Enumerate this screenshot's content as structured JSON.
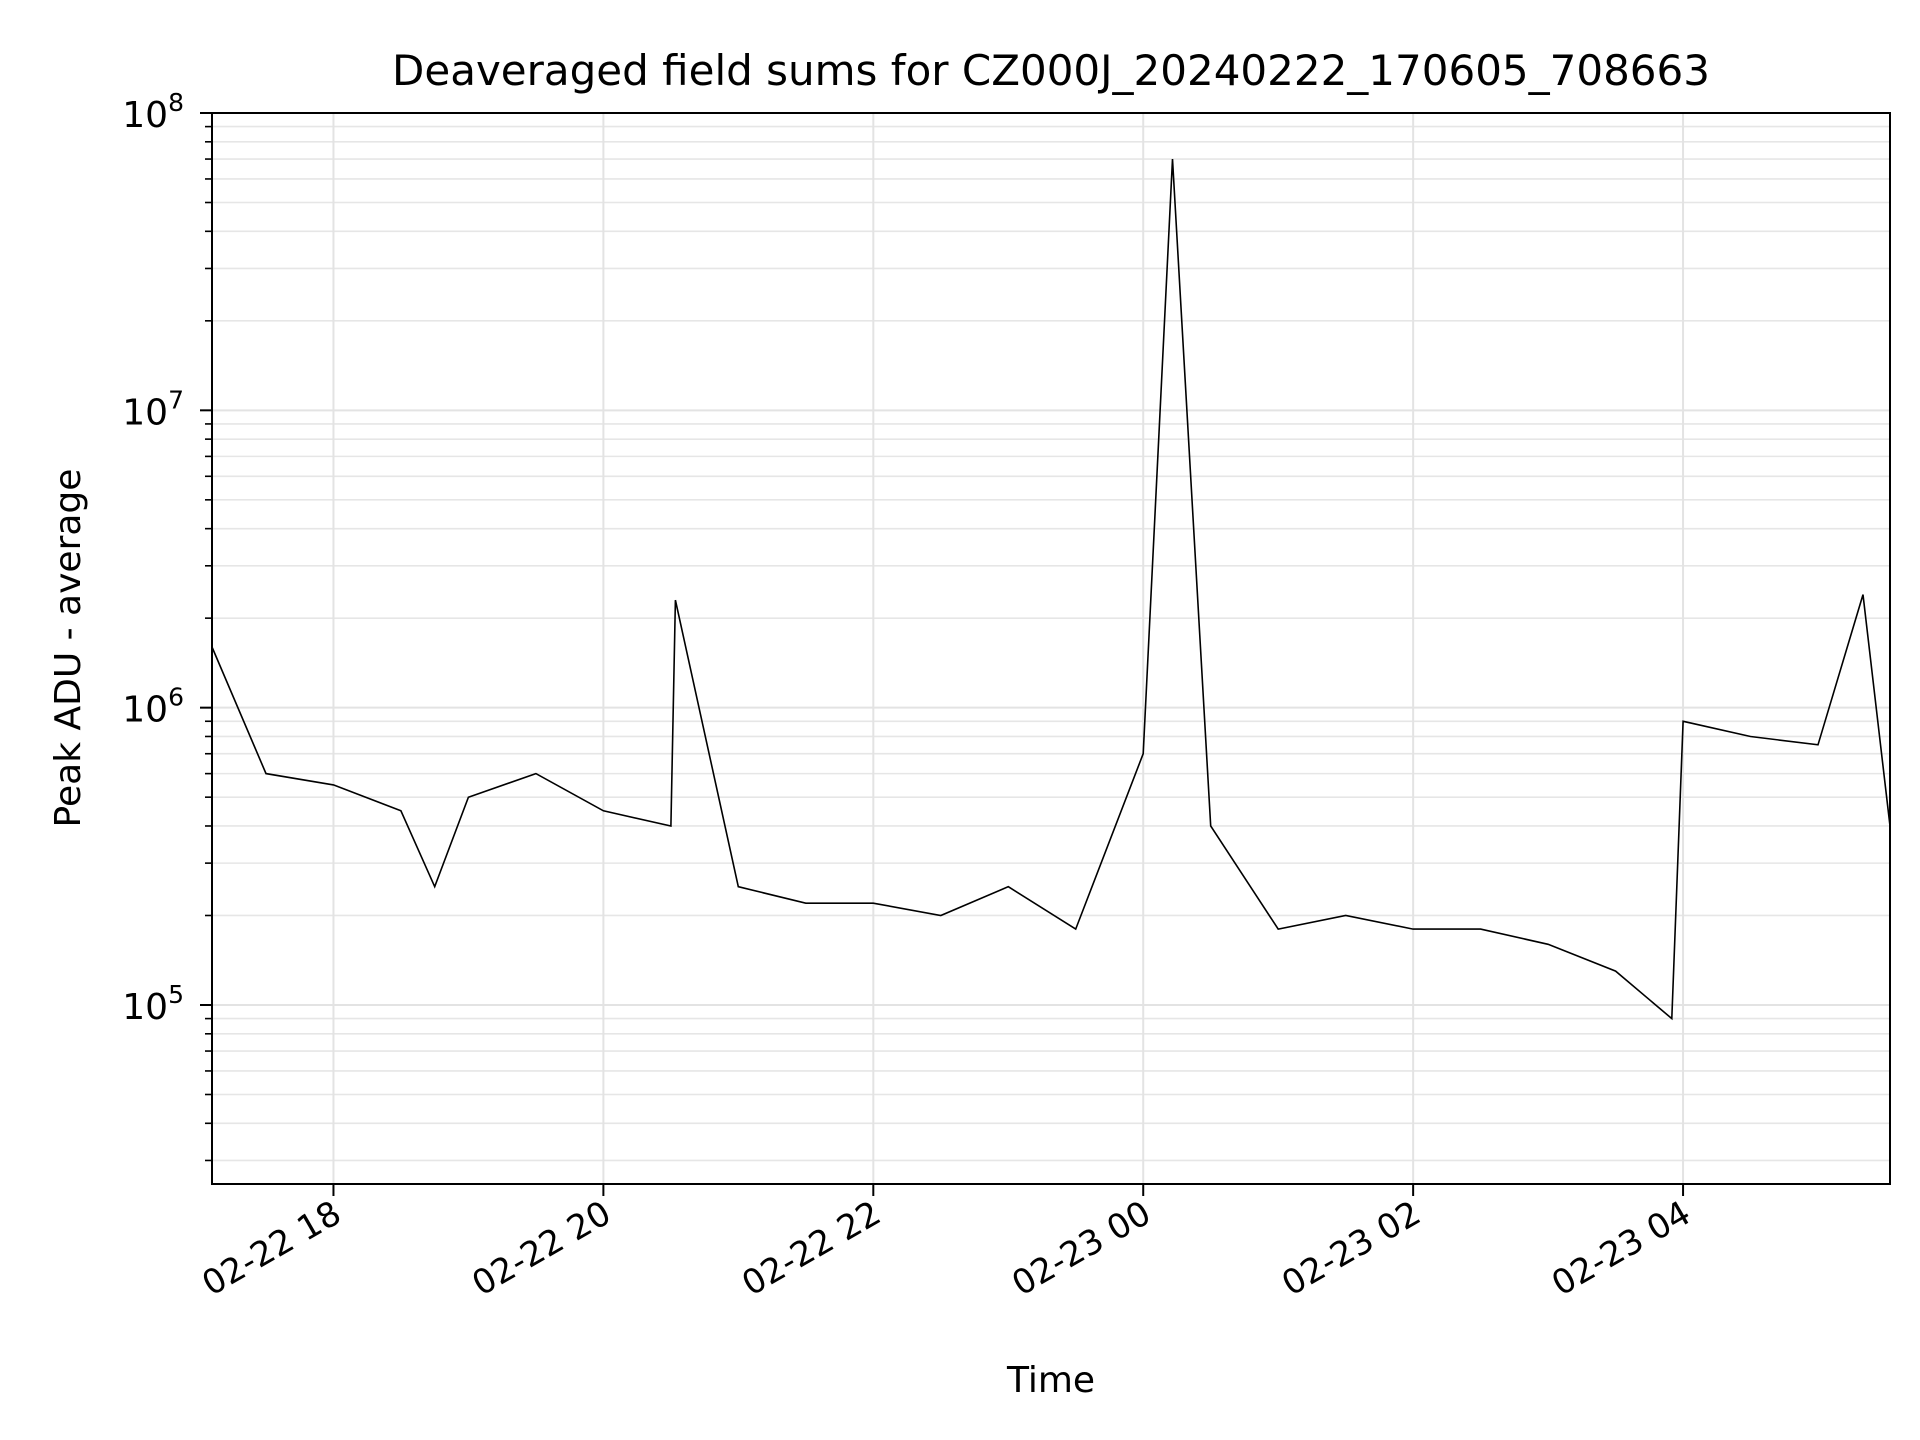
{
  "chart_data": {
    "type": "line",
    "title": "Deaveraged field sums for CZ000J_20240222_170605_708663",
    "xlabel": "Time",
    "ylabel": "Peak ADU - average",
    "yscale": "log",
    "ylim": [
      25000,
      100000000
    ],
    "xlim": [
      "2024-02-22T17:06",
      "2024-02-23T05:32"
    ],
    "grid": "on (major and minor)",
    "legend": "none",
    "line_color": "#000000",
    "x_ticks": [
      {
        "label": "02-22 18",
        "t": "2024-02-22T18:00"
      },
      {
        "label": "02-22 20",
        "t": "2024-02-22T20:00"
      },
      {
        "label": "02-22 22",
        "t": "2024-02-22T22:00"
      },
      {
        "label": "02-23 00",
        "t": "2024-02-23T00:00"
      },
      {
        "label": "02-23 02",
        "t": "2024-02-23T02:00"
      },
      {
        "label": "02-23 04",
        "t": "2024-02-23T04:00"
      }
    ],
    "y_ticks": [
      {
        "base": "10",
        "exp": "5",
        "value": 100000
      },
      {
        "base": "10",
        "exp": "6",
        "value": 1000000
      },
      {
        "base": "10",
        "exp": "7",
        "value": 10000000
      },
      {
        "base": "10",
        "exp": "8",
        "value": 100000000
      }
    ],
    "series": [
      {
        "x": [
          "2024-02-22T17:06",
          "2024-02-22T17:30",
          "2024-02-22T18:00",
          "2024-02-22T18:30",
          "2024-02-22T18:45",
          "2024-02-22T19:00",
          "2024-02-22T19:30",
          "2024-02-22T20:00",
          "2024-02-22T20:30",
          "2024-02-22T20:32",
          "2024-02-22T21:00",
          "2024-02-22T21:30",
          "2024-02-22T22:00",
          "2024-02-22T22:30",
          "2024-02-22T23:00",
          "2024-02-22T23:30",
          "2024-02-23T00:00",
          "2024-02-23T00:13",
          "2024-02-23T00:30",
          "2024-02-23T01:00",
          "2024-02-23T01:30",
          "2024-02-23T02:00",
          "2024-02-23T02:30",
          "2024-02-23T03:00",
          "2024-02-23T03:30",
          "2024-02-23T03:55",
          "2024-02-23T04:00",
          "2024-02-23T04:30",
          "2024-02-23T05:00",
          "2024-02-23T05:20",
          "2024-02-23T05:32"
        ],
        "y": [
          1600000,
          600000,
          550000,
          450000,
          250000,
          500000,
          600000,
          450000,
          400000,
          2300000,
          250000,
          220000,
          220000,
          200000,
          250000,
          180000,
          700000,
          70000000,
          400000,
          180000,
          200000,
          180000,
          180000,
          160000,
          130000,
          90000,
          900000,
          800000,
          750000,
          2400000,
          400000
        ]
      }
    ]
  }
}
